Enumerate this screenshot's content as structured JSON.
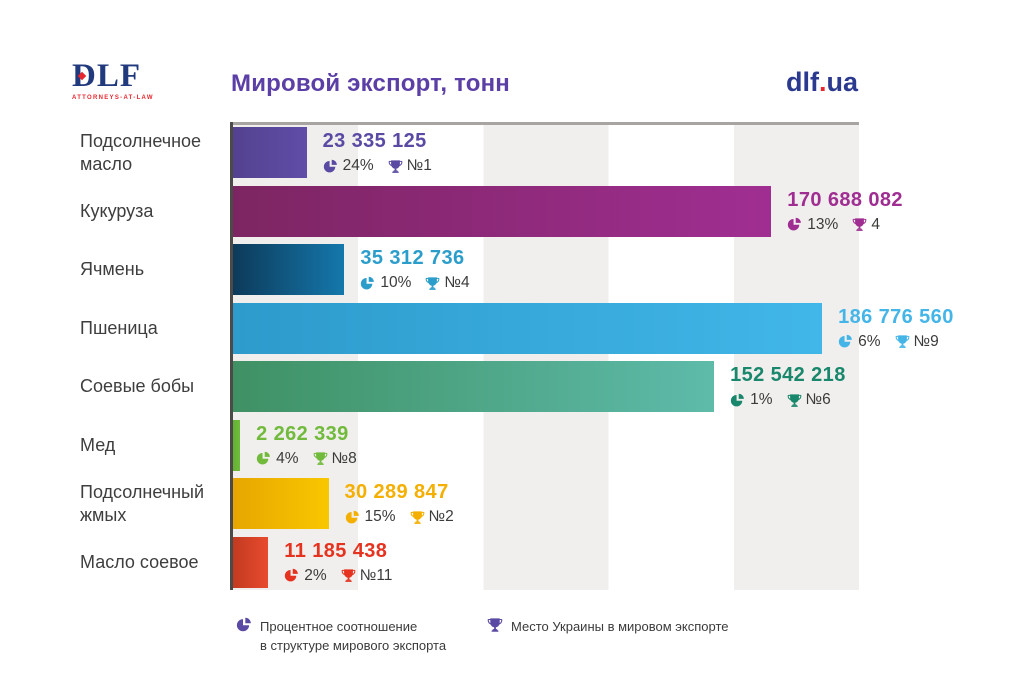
{
  "header": {
    "logo_text": "DLF",
    "logo_subtext": "ATTORNEYS-AT-LAW",
    "title": "Мировой экспорт, тонн",
    "site_name": "dlf",
    "site_dot": ".",
    "site_tld": "ua"
  },
  "legend": {
    "pie_line1": "Процентное соотношение",
    "pie_line2": "в структуре мирового экспорта",
    "trophy_label": "Место Украины в мировом экспорте"
  },
  "style": {
    "accent_purple": "#5b4aa3",
    "stripe_gray": "#f0efed",
    "axis_color": "#4b4a48",
    "text_gray": "#3b3b3a"
  },
  "chart_data": {
    "type": "bar",
    "orientation": "horizontal",
    "title": "Мировой экспорт, тонн",
    "unit": "тонн",
    "max_value": 186776560,
    "bar_fill_ratio": 0.941,
    "rows": [
      {
        "label": "Подсолнечное масло",
        "value": 23335125,
        "value_label": "23 335 125",
        "percent": "24%",
        "rank": "№1",
        "color": "#5b4aa3",
        "gradient": [
          "#54428f",
          "#5f4da8"
        ]
      },
      {
        "label": "Кукуруза",
        "value": 170688082,
        "value_label": "170 688 082",
        "percent": "13%",
        "rank": "4",
        "color": "#a02e92",
        "gradient": [
          "#7d2562",
          "#a02e92"
        ]
      },
      {
        "label": "Ячмень",
        "value": 35312736,
        "value_label": "35 312 736",
        "percent": "10%",
        "rank": "№4",
        "color": "#2b9dcb",
        "gradient": [
          "#0d3a5a",
          "#1478ac"
        ]
      },
      {
        "label": "Пшеница",
        "value": 186776560,
        "value_label": "186 776 560",
        "percent": "6%",
        "rank": "№9",
        "color": "#45b5e8",
        "gradient": [
          "#2d9bcc",
          "#41b6e8"
        ]
      },
      {
        "label": "Соевые бобы",
        "value": 152542218,
        "value_label": "152 542 218",
        "percent": "1%",
        "rank": "№6",
        "color": "#19876b",
        "gradient": [
          "#3f9164",
          "#5ebbaa"
        ]
      },
      {
        "label": "Мед",
        "value": 2262339,
        "value_label": "2 262 339",
        "percent": "4%",
        "rank": "№8",
        "color": "#71ba3c",
        "gradient": [
          "#63b233",
          "#71ba3c"
        ]
      },
      {
        "label": "Подсолнечный жмых",
        "value": 30289847,
        "value_label": "30 289 847",
        "percent": "15%",
        "rank": "№2",
        "color": "#f4af00",
        "gradient": [
          "#e7a600",
          "#f9c700"
        ]
      },
      {
        "label": "Масло соевое",
        "value": 11185438,
        "value_label": "11 185 438",
        "percent": "2%",
        "rank": "№11",
        "color": "#e5331f",
        "gradient": [
          "#c23a20",
          "#e84b2e"
        ]
      }
    ]
  }
}
